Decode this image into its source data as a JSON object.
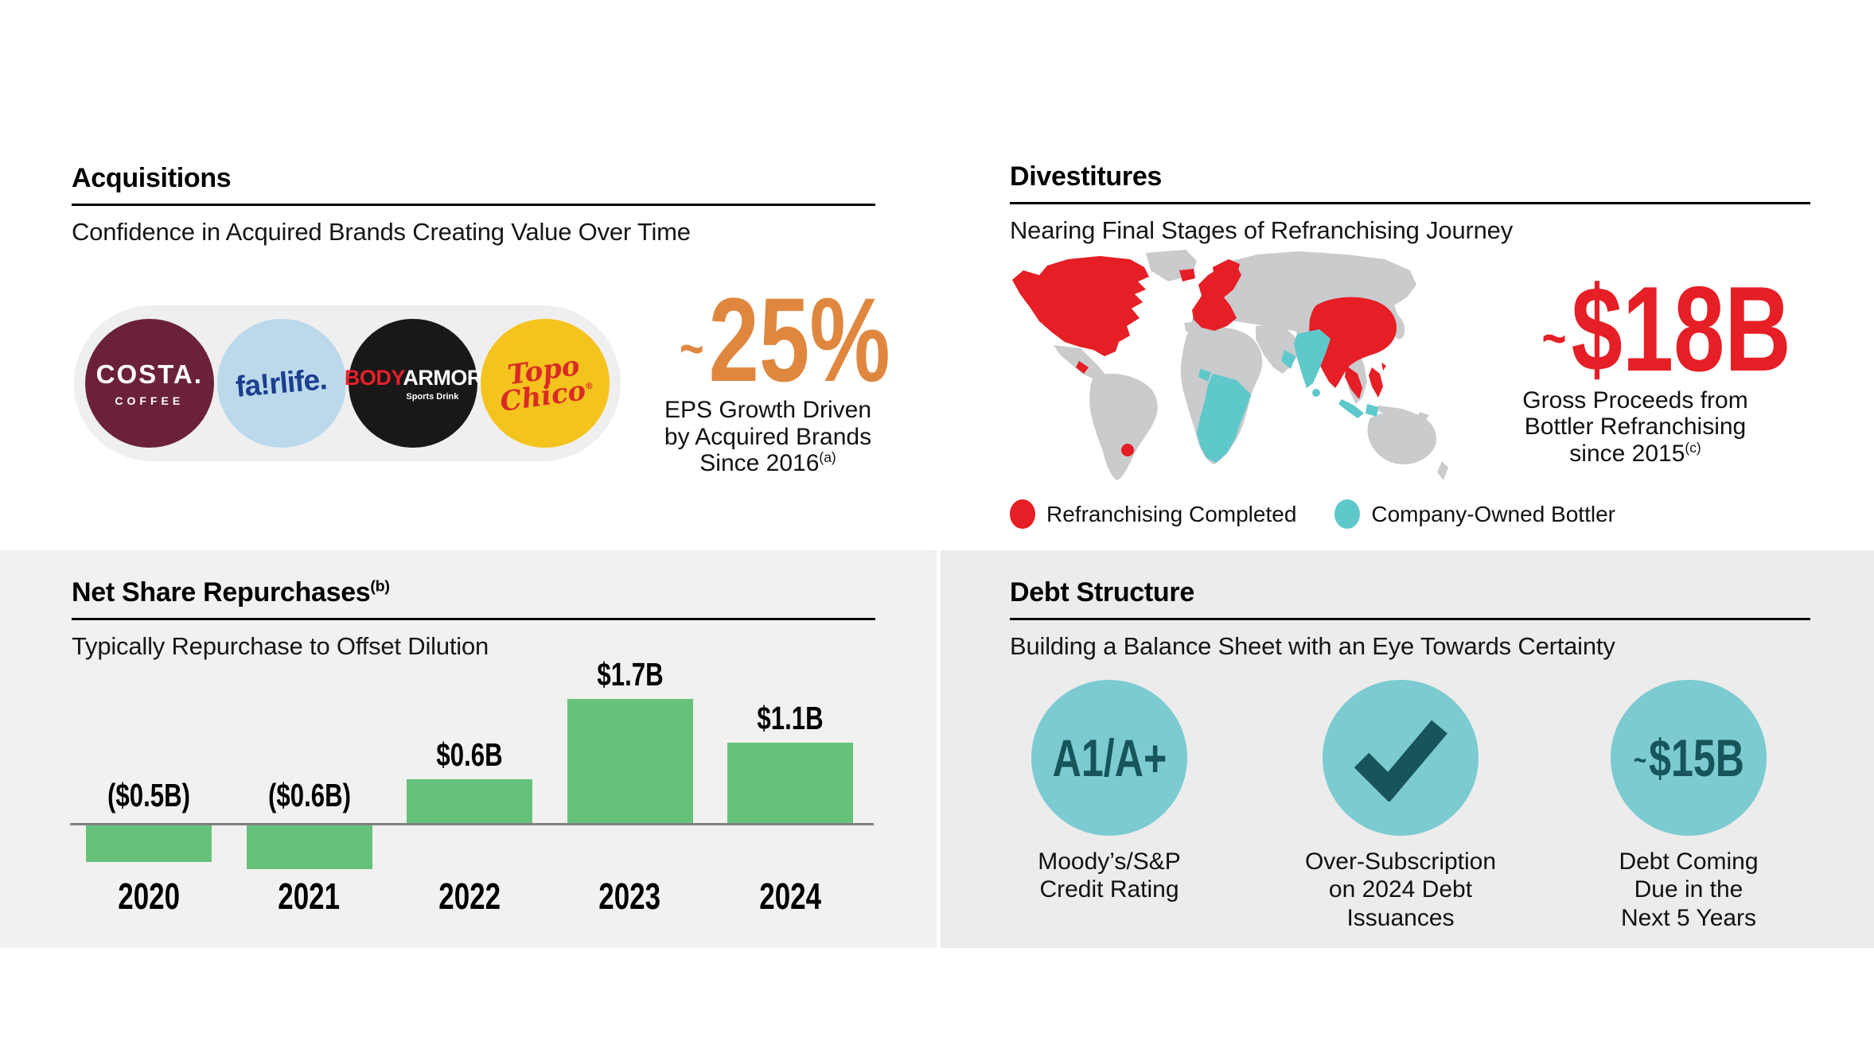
{
  "colors": {
    "accent_orange": "#E0873F",
    "accent_red": "#E61E25",
    "bar_green": "#66C27B",
    "circle_teal": "#7BCBD1",
    "circle_text_dark_teal": "#17555A",
    "map_land_gray": "#C9CBCD",
    "map_completed_red": "#E61E25",
    "map_bottler_teal": "#5FC8CB",
    "panel_left_bg": "#F1F1F0",
    "panel_right_bg": "#ECECEC",
    "pill_bg": "#EFEFEF",
    "axis_gray": "#808080",
    "costa_maroon": "#6B2238",
    "fairlife_bg_blue": "#BCD9EC",
    "fairlife_text_blue": "#1C3E8E",
    "bodyarmor_bg_black": "#1A1718",
    "bodyarmor_red": "#E6202A",
    "topo_yellow": "#F5C31D",
    "topo_red": "#D92B26"
  },
  "acquisitions": {
    "title": "Acquisitions",
    "subtitle": "Confidence in Acquired Brands Creating Value Over Time",
    "brands": [
      {
        "name": "Costa Coffee",
        "line1": "COSTA.",
        "line2": "COFFEE"
      },
      {
        "name": "fairlife",
        "wordmark": "fa!rlife."
      },
      {
        "name": "BODYARMOR",
        "part1": "BODY",
        "part2": "ARMOR",
        "tagline": "Sports Drink"
      },
      {
        "name": "Topo Chico",
        "line1": "Topo",
        "line2": "Chico",
        "reg": "®"
      }
    ],
    "stat": {
      "approx": "~",
      "value": "25%",
      "caption_lines": [
        "EPS Growth Driven",
        "by Acquired Brands",
        "Since 2016"
      ],
      "footnote": "(a)"
    }
  },
  "divestitures": {
    "title": "Divestitures",
    "subtitle": "Nearing Final Stages of Refranchising Journey",
    "legend": [
      {
        "label": "Refranchising Completed",
        "color": "#E61E25"
      },
      {
        "label": "Company-Owned Bottler",
        "color": "#5FC8CB"
      }
    ],
    "stat": {
      "approx": "~",
      "value": "$18B",
      "caption_lines": [
        "Gross Proceeds from",
        "Bottler Refranchising",
        "since 2015"
      ],
      "footnote": "(c)"
    }
  },
  "net_share_repurchases": {
    "title": "Net Share Repurchases",
    "footnote": "(b)",
    "subtitle": "Typically Repurchase to Offset Dilution",
    "chart_data": {
      "type": "bar",
      "categories": [
        "2020",
        "2021",
        "2022",
        "2023",
        "2024"
      ],
      "values": [
        -0.5,
        -0.6,
        0.6,
        1.7,
        1.1
      ],
      "labels": [
        "($0.5B)",
        "($0.6B)",
        "$0.6B",
        "$1.7B",
        "$1.1B"
      ],
      "unit": "USD billions",
      "bar_color": "#66C27B",
      "baseline": 0,
      "ylim": [
        -0.7,
        1.8
      ],
      "grid": false,
      "legend_position": "none"
    }
  },
  "debt_structure": {
    "title": "Debt Structure",
    "subtitle": "Building a Balance Sheet with an Eye Towards Certainty",
    "items": [
      {
        "badge_approx": "",
        "badge": "A1/A+",
        "icon": "",
        "caption_lines": [
          "Moody’s/S&P",
          "Credit Rating"
        ]
      },
      {
        "badge_approx": "",
        "badge": "",
        "icon": "checkmark-icon",
        "caption_lines": [
          "Over-Subscription",
          "on 2024 Debt",
          "Issuances"
        ]
      },
      {
        "badge_approx": "~",
        "badge": "$15B",
        "icon": "",
        "caption_lines": [
          "Debt Coming",
          "Due in the",
          "Next 5 Years"
        ]
      }
    ]
  }
}
